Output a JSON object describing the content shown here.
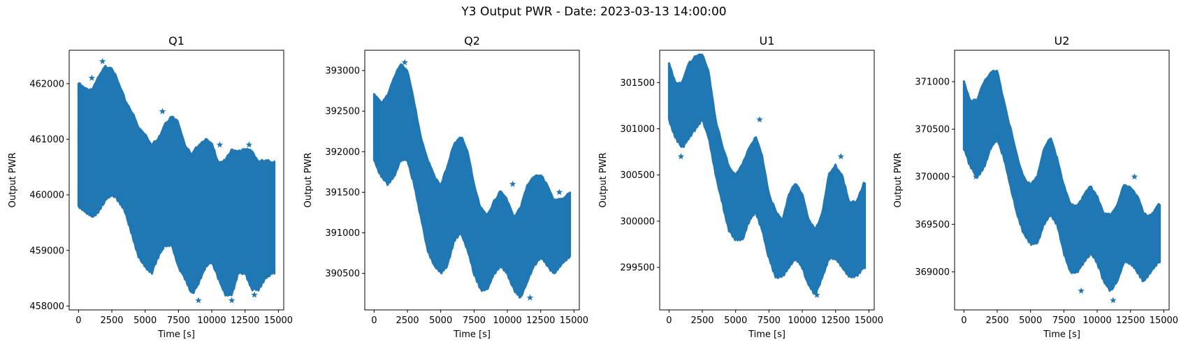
{
  "figure": {
    "suptitle": "Y3 Output PWR - Date: 2023-03-13 14:00:00"
  },
  "chart_data": [
    {
      "type": "scatter",
      "title": "Q1",
      "xlabel": "Time [s]",
      "ylabel": "Output PWR",
      "marker": "star",
      "color": "#1f77b4",
      "xlim": [
        -700,
        15400
      ],
      "ylim": [
        457930,
        462600
      ],
      "xticks": [
        0,
        2500,
        5000,
        7500,
        10000,
        12500,
        15000
      ],
      "yticks": [
        458000,
        459000,
        460000,
        461000,
        462000
      ],
      "x_range": [
        0,
        14700
      ],
      "band_x": [
        0,
        500,
        1000,
        1500,
        2000,
        2500,
        3000,
        3500,
        4000,
        4500,
        5000,
        5500,
        6000,
        6500,
        7000,
        7500,
        8000,
        8500,
        9000,
        9500,
        10000,
        10500,
        11000,
        11500,
        12000,
        12500,
        13000,
        13500,
        14000,
        14600
      ],
      "band_upper": [
        462000,
        461900,
        461900,
        462100,
        462300,
        462300,
        462000,
        461700,
        461500,
        461200,
        461100,
        460900,
        461000,
        461300,
        461400,
        461300,
        460900,
        460700,
        460900,
        461000,
        460900,
        460600,
        460600,
        460800,
        460800,
        460800,
        460800,
        460600,
        460600,
        460600
      ],
      "band_lower": [
        459800,
        459700,
        459600,
        459700,
        459900,
        460000,
        459900,
        459700,
        459300,
        458900,
        458700,
        458600,
        458900,
        459100,
        459100,
        458700,
        458500,
        458200,
        458400,
        458700,
        458800,
        458500,
        458200,
        458200,
        458600,
        458600,
        458300,
        458300,
        458500,
        458600
      ],
      "outliers": [
        [
          1000,
          462100
        ],
        [
          1800,
          462400
        ],
        [
          6300,
          461500
        ],
        [
          9900,
          460900
        ],
        [
          10600,
          460900
        ],
        [
          12800,
          460900
        ],
        [
          9000,
          458100
        ],
        [
          11500,
          458100
        ],
        [
          13200,
          458200
        ]
      ]
    },
    {
      "type": "scatter",
      "title": "Q2",
      "xlabel": "Time [s]",
      "ylabel": "Output PWR",
      "marker": "star",
      "color": "#1f77b4",
      "xlim": [
        -700,
        15400
      ],
      "ylim": [
        390050,
        393250
      ],
      "xticks": [
        0,
        2500,
        5000,
        7500,
        10000,
        12500,
        15000
      ],
      "yticks": [
        390500,
        391000,
        391500,
        392000,
        392500,
        393000
      ],
      "x_range": [
        0,
        14700
      ],
      "band_x": [
        0,
        500,
        1000,
        1500,
        2000,
        2500,
        3000,
        3500,
        4000,
        4500,
        5000,
        5500,
        6000,
        6500,
        7000,
        7500,
        8000,
        8500,
        9000,
        9500,
        10000,
        10500,
        11000,
        11500,
        12000,
        12500,
        13000,
        13500,
        14000,
        14600
      ],
      "band_upper": [
        392700,
        392600,
        392700,
        392900,
        393100,
        393000,
        392600,
        392200,
        391900,
        391700,
        391600,
        391800,
        392100,
        392200,
        392000,
        391600,
        391300,
        391200,
        391400,
        391500,
        391400,
        391200,
        391300,
        391600,
        391700,
        391700,
        391600,
        391400,
        391400,
        391500
      ],
      "band_lower": [
        391900,
        391700,
        391600,
        391700,
        391900,
        391900,
        391600,
        391200,
        390800,
        390600,
        390500,
        390600,
        390900,
        391000,
        390800,
        390500,
        390300,
        390300,
        390500,
        390600,
        390500,
        390300,
        390200,
        390400,
        390600,
        390700,
        390600,
        390500,
        390600,
        390700
      ],
      "outliers": [
        [
          1900,
          391900
        ],
        [
          2300,
          393100
        ],
        [
          10400,
          391600
        ],
        [
          13900,
          391500
        ],
        [
          11700,
          390200
        ]
      ]
    },
    {
      "type": "scatter",
      "title": "U1",
      "xlabel": "Time [s]",
      "ylabel": "Output PWR",
      "marker": "star",
      "color": "#1f77b4",
      "xlim": [
        -700,
        15400
      ],
      "ylim": [
        299040,
        301850
      ],
      "xticks": [
        0,
        2500,
        5000,
        7500,
        10000,
        12500,
        15000
      ],
      "yticks": [
        299500,
        300000,
        300500,
        301000,
        301500
      ],
      "x_range": [
        0,
        14700
      ],
      "band_x": [
        0,
        500,
        1000,
        1500,
        2000,
        2500,
        3000,
        3500,
        4000,
        4500,
        5000,
        5500,
        6000,
        6500,
        7000,
        7500,
        8000,
        8500,
        9000,
        9500,
        10000,
        10500,
        11000,
        11500,
        12000,
        12500,
        13000,
        13500,
        14000,
        14600
      ],
      "band_upper": [
        301700,
        301500,
        301500,
        301700,
        301800,
        301800,
        301600,
        301100,
        300800,
        300600,
        300500,
        300600,
        300800,
        300900,
        300700,
        300300,
        300100,
        300000,
        300300,
        300400,
        300300,
        300000,
        299900,
        300100,
        300500,
        300600,
        300500,
        300200,
        300200,
        300400
      ],
      "band_lower": [
        301100,
        300900,
        300800,
        300900,
        301000,
        301100,
        300900,
        300500,
        300200,
        299900,
        299800,
        299800,
        300000,
        300100,
        299900,
        299600,
        299400,
        299400,
        299500,
        299600,
        299500,
        299300,
        299200,
        299400,
        299600,
        299600,
        299500,
        299400,
        299400,
        299500
      ],
      "outliers": [
        [
          900,
          300700
        ],
        [
          6800,
          301100
        ],
        [
          12900,
          300700
        ],
        [
          11100,
          299200
        ]
      ]
    },
    {
      "type": "scatter",
      "title": "U2",
      "xlabel": "Time [s]",
      "ylabel": "Output PWR",
      "marker": "star",
      "color": "#1f77b4",
      "xlim": [
        -700,
        15400
      ],
      "ylim": [
        368600,
        371330
      ],
      "xticks": [
        0,
        2500,
        5000,
        7500,
        10000,
        12500,
        15000
      ],
      "yticks": [
        369000,
        369500,
        370000,
        370500,
        371000
      ],
      "x_range": [
        0,
        14700
      ],
      "band_x": [
        0,
        500,
        1000,
        1500,
        2000,
        2500,
        3000,
        3500,
        4000,
        4500,
        5000,
        5500,
        6000,
        6500,
        7000,
        7500,
        8000,
        8500,
        9000,
        9500,
        10000,
        10500,
        11000,
        11500,
        12000,
        12500,
        13000,
        13500,
        14000,
        14600
      ],
      "band_upper": [
        371000,
        370800,
        370800,
        371000,
        371100,
        371100,
        370800,
        370500,
        370200,
        370000,
        369900,
        370000,
        370300,
        370400,
        370200,
        369900,
        369700,
        369700,
        369800,
        369900,
        369800,
        369600,
        369600,
        369700,
        369900,
        369900,
        369800,
        369600,
        369600,
        369700
      ],
      "band_lower": [
        370300,
        370100,
        370000,
        370100,
        370300,
        370400,
        370200,
        369900,
        369600,
        369400,
        369300,
        369300,
        369500,
        369600,
        369500,
        369200,
        369000,
        369000,
        369100,
        369200,
        369100,
        368900,
        368800,
        368900,
        369100,
        369100,
        369000,
        368900,
        369000,
        369100
      ],
      "outliers": [
        [
          900,
          370000
        ],
        [
          12800,
          370000
        ],
        [
          8800,
          368800
        ],
        [
          11200,
          368700
        ]
      ]
    }
  ]
}
